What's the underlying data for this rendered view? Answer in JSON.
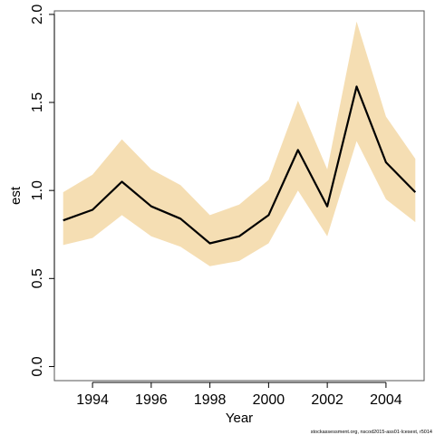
{
  "chart_data": {
    "type": "line",
    "x": [
      1993,
      1994,
      1995,
      1996,
      1997,
      1998,
      1999,
      2000,
      2001,
      2002,
      2003,
      2004,
      2005
    ],
    "series": [
      {
        "values": [
          0.83,
          0.89,
          1.05,
          0.91,
          0.84,
          0.7,
          0.74,
          0.86,
          1.23,
          0.91,
          1.59,
          1.16,
          0.99
        ],
        "lower": [
          0.69,
          0.73,
          0.86,
          0.74,
          0.68,
          0.57,
          0.6,
          0.7,
          1.0,
          0.74,
          1.28,
          0.95,
          0.82
        ],
        "upper": [
          0.99,
          1.09,
          1.29,
          1.12,
          1.03,
          0.86,
          0.92,
          1.06,
          1.51,
          1.12,
          1.96,
          1.42,
          1.18
        ]
      }
    ],
    "xlabel": "Year",
    "ylabel": "est",
    "xlim": [
      1992.7,
      2005.3
    ],
    "ylim": [
      -0.08,
      2.02
    ],
    "xticks": [
      "1994",
      "1996",
      "1998",
      "2000",
      "2002",
      "2004"
    ],
    "yticks": [
      "0.0",
      "0.5",
      "1.0",
      "1.5",
      "2.0"
    ],
    "grid": false,
    "line_color": "#000000",
    "band_color": "#f5deb3"
  },
  "footnote": "stockassessment.org, nscod2015-ass01-lcesext, r5014"
}
